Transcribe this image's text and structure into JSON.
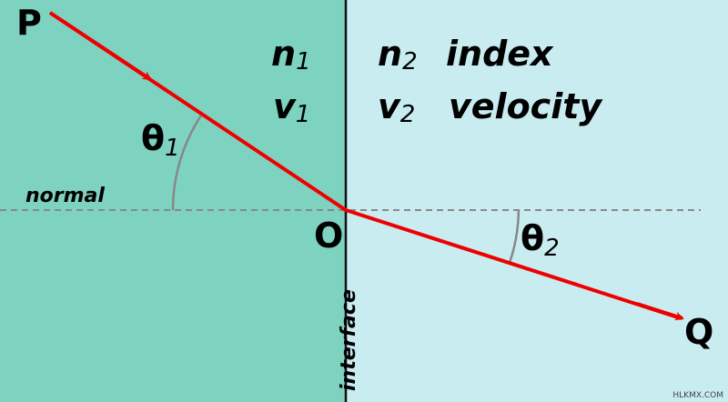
{
  "labels": {
    "P": "P",
    "O": "O",
    "Q": "Q",
    "normal": "normal",
    "interface": "interface",
    "theta1": {
      "symbol": "θ",
      "subscript": "1"
    },
    "theta2": {
      "symbol": "θ",
      "subscript": "2"
    },
    "n1": {
      "symbol": "n",
      "subscript": "1"
    },
    "v1": {
      "symbol": "v",
      "subscript": "1"
    },
    "n2": {
      "symbol": "n",
      "subscript": "2"
    },
    "v2": {
      "symbol": "v",
      "subscript": "2"
    },
    "index": "index",
    "velocity": "velocity",
    "watermark": "HLKMX.COM"
  }
}
